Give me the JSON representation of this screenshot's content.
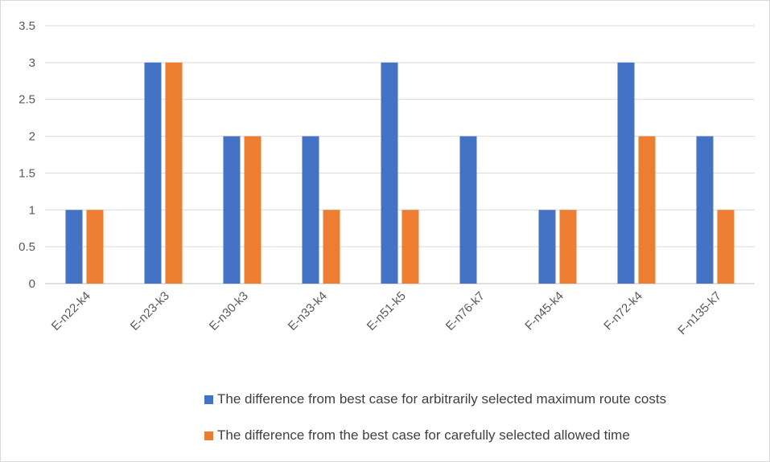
{
  "chart_data": {
    "type": "bar",
    "categories": [
      "E-n22-k4",
      "E-n23-k3",
      "E-n30-k3",
      "E-n33-k4",
      "E-n51-k5",
      "E-n76-k7",
      "F-n45-k4",
      "F-n72-k4",
      "F-n135-k7"
    ],
    "series": [
      {
        "name": "The difference from best case for arbitrarily selected maximum route costs",
        "color": "#4472c4",
        "values": [
          1,
          3,
          2,
          2,
          3,
          2,
          1,
          3,
          2
        ]
      },
      {
        "name": "The difference from the best case for carefully selected allowed time",
        "color": "#ed7d31",
        "values": [
          1,
          3,
          2,
          1,
          1,
          0,
          1,
          2,
          1
        ]
      }
    ],
    "ylim": [
      0,
      3.5
    ],
    "yticks": [
      "0",
      "0.5",
      "1",
      "1.5",
      "2",
      "2.5",
      "3",
      "3.5"
    ],
    "grid": true,
    "legend": "bottom"
  }
}
